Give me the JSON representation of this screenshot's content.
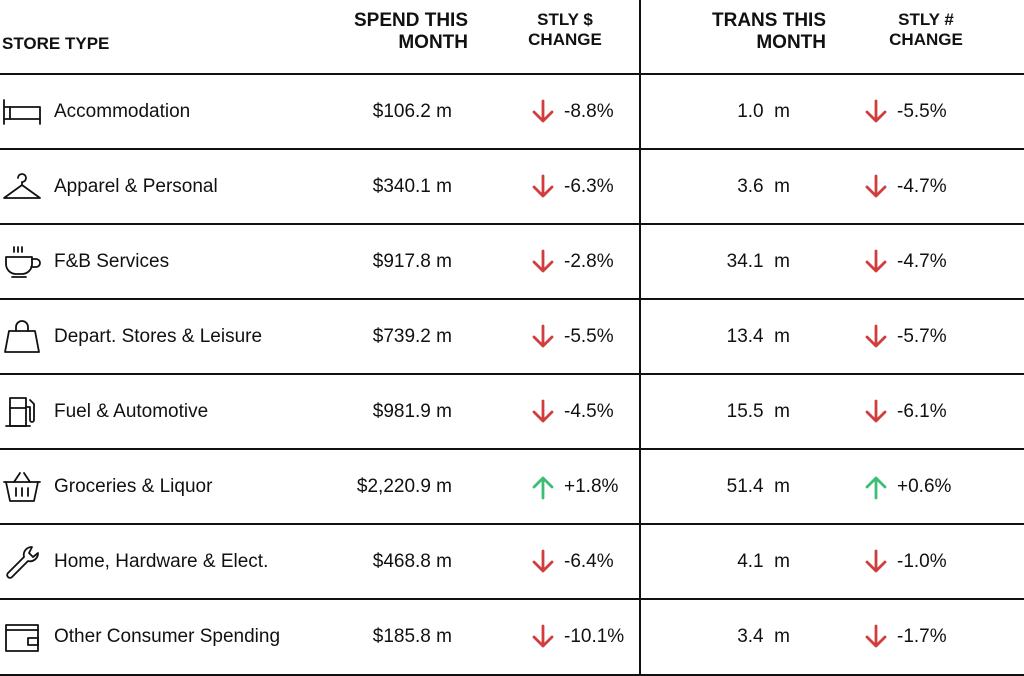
{
  "header": {
    "store_type": "STORE TYPE",
    "spend_line1": "SPEND THIS",
    "spend_line2": "MONTH",
    "stly_dollar_line1": "STLY $",
    "stly_dollar_line2": "CHANGE",
    "trans_line1": "TRANS THIS",
    "trans_line2": "MONTH",
    "stly_num_line1": "STLY #",
    "stly_num_line2": "CHANGE"
  },
  "colors": {
    "down": "#d13c3c",
    "up": "#3cbf72",
    "rule": "#111111"
  },
  "rows": [
    {
      "icon": "bed-icon",
      "label": "Accommodation",
      "spend": "$106.2 m",
      "spend_change": "-8.8%",
      "spend_dir": "down",
      "trans": "1.0  m",
      "trans_change": "-5.5%",
      "trans_dir": "down"
    },
    {
      "icon": "hanger-icon",
      "label": "Apparel & Personal",
      "spend": "$340.1 m",
      "spend_change": "-6.3%",
      "spend_dir": "down",
      "trans": "3.6  m",
      "trans_change": "-4.7%",
      "trans_dir": "down"
    },
    {
      "icon": "coffee-cup-icon",
      "label": "F&B Services",
      "spend": "$917.8 m",
      "spend_change": "-2.8%",
      "spend_dir": "down",
      "trans": "34.1  m",
      "trans_change": "-4.7%",
      "trans_dir": "down"
    },
    {
      "icon": "shopping-bag-icon",
      "label": "Depart. Stores & Leisure",
      "spend": "$739.2 m",
      "spend_change": "-5.5%",
      "spend_dir": "down",
      "trans": "13.4  m",
      "trans_change": "-5.7%",
      "trans_dir": "down"
    },
    {
      "icon": "fuel-pump-icon",
      "label": "Fuel & Automotive",
      "spend": "$981.9 m",
      "spend_change": "-4.5%",
      "spend_dir": "down",
      "trans": "15.5  m",
      "trans_change": "-6.1%",
      "trans_dir": "down"
    },
    {
      "icon": "basket-icon",
      "label": "Groceries & Liquor",
      "spend": "$2,220.9 m",
      "spend_change": "+1.8%",
      "spend_dir": "up",
      "trans": "51.4  m",
      "trans_change": "+0.6%",
      "trans_dir": "up"
    },
    {
      "icon": "wrench-icon",
      "label": "Home, Hardware & Elect.",
      "spend": "$468.8 m",
      "spend_change": "-6.4%",
      "spend_dir": "down",
      "trans": "4.1  m",
      "trans_change": "-1.0%",
      "trans_dir": "down"
    },
    {
      "icon": "wallet-icon",
      "label": "Other Consumer Spending",
      "spend": "$185.8 m",
      "spend_change": "-10.1%",
      "spend_dir": "down",
      "trans": "3.4  m",
      "trans_change": "-1.7%",
      "trans_dir": "down"
    }
  ]
}
